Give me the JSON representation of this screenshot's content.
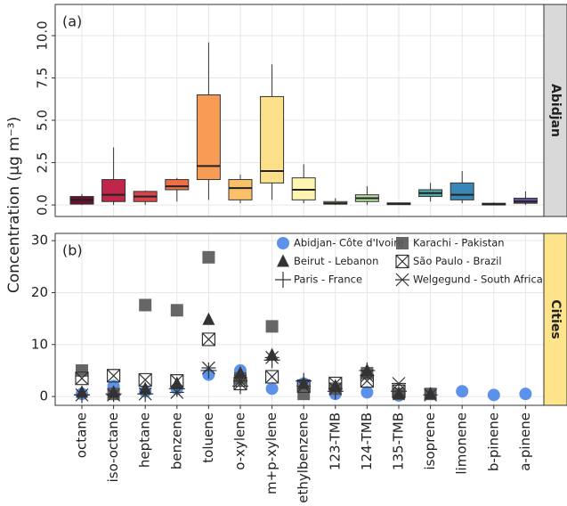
{
  "chart_data": [
    {
      "type": "box",
      "panel_label": "(a)",
      "strip": "Abidjan",
      "strip_color": "#d9d9d9",
      "ylabel": "Concentration (μg m⁻³)",
      "ylim": [
        -0.68,
        11.84
      ],
      "yticks": [
        {
          "value": 0,
          "label": "0.0"
        },
        2.5,
        {
          "value": 5,
          "label": "5.0"
        },
        7.5,
        {
          "value": 10,
          "label": "10.0"
        }
      ],
      "grid": true,
      "stats": [
        {
          "whisker_low": 0,
          "q1": 0.05,
          "median": 0.3,
          "q3": 0.5,
          "whisker_high": 0.65,
          "color": "#6b0f2a"
        },
        {
          "whisker_low": 0,
          "q1": 0.2,
          "median": 0.6,
          "q3": 1.5,
          "whisker_high": 3.4,
          "color": "#c0264a"
        },
        {
          "whisker_low": 0,
          "q1": 0.2,
          "median": 0.5,
          "q3": 0.8,
          "whisker_high": 0.85,
          "color": "#d9444a"
        },
        {
          "whisker_low": 0.2,
          "q1": 0.9,
          "median": 1.1,
          "q3": 1.5,
          "whisker_high": 1.6,
          "color": "#ef6e45"
        },
        {
          "whisker_low": 0.3,
          "q1": 1.5,
          "median": 2.3,
          "q3": 6.5,
          "whisker_high": 9.6,
          "color": "#f89b55"
        },
        {
          "whisker_low": 0.1,
          "q1": 0.3,
          "median": 1.0,
          "q3": 1.5,
          "whisker_high": 1.8,
          "color": "#fdc06a"
        },
        {
          "whisker_low": 0.3,
          "q1": 1.3,
          "median": 2.0,
          "q3": 6.4,
          "whisker_high": 8.3,
          "color": "#fde08a"
        },
        {
          "whisker_low": 0.1,
          "q1": 0.3,
          "median": 0.9,
          "q3": 1.6,
          "whisker_high": 2.4,
          "color": "#fff5b0"
        },
        {
          "whisker_low": 0,
          "q1": 0.05,
          "median": 0.1,
          "q3": 0.2,
          "whisker_high": 0.4,
          "color": "#e6f2a0"
        },
        {
          "whisker_low": 0,
          "q1": 0.2,
          "median": 0.4,
          "q3": 0.6,
          "whisker_high": 1.1,
          "color": "#b2dc9c"
        },
        {
          "whisker_low": 0,
          "q1": 0.02,
          "median": 0.08,
          "q3": 0.12,
          "whisker_high": 0.15,
          "color": "#7cc6a4"
        },
        {
          "whisker_low": 0.2,
          "q1": 0.5,
          "median": 0.7,
          "q3": 0.9,
          "whisker_high": 1.3,
          "color": "#4fa8a8"
        },
        {
          "whisker_low": 0.1,
          "q1": 0.3,
          "median": 0.6,
          "q3": 1.3,
          "whisker_high": 2.0,
          "color": "#3a86b4"
        },
        {
          "whisker_low": 0,
          "q1": 0,
          "median": 0.05,
          "q3": 0.1,
          "whisker_high": 0.15,
          "color": "#4a61a8"
        },
        {
          "whisker_low": 0,
          "q1": 0.1,
          "median": 0.2,
          "q3": 0.4,
          "whisker_high": 0.8,
          "color": "#6a4d9c"
        }
      ]
    },
    {
      "type": "scatter",
      "panel_label": "(b)",
      "strip": "Cities",
      "strip_color": "#fde38a",
      "ylim": [
        -1.7,
        31.4
      ],
      "yticks": [
        0,
        10,
        20,
        30
      ],
      "grid": true,
      "categories": [
        "octane",
        "iso-octane",
        "heptane",
        "benzene",
        "toluene",
        "o-xylene",
        "m+p-xylene",
        "ethylbenzene",
        "123-TMB",
        "124-TMB",
        "135-TMB",
        "isoprene",
        "limonene",
        "b-pinene",
        "a-pinene"
      ],
      "series": [
        {
          "name": "Abidjan- Côte d'Ivoire",
          "marker": "circle",
          "color": "#4a86e8",
          "values": [
            0.5,
            2,
            1,
            1.5,
            4.2,
            5,
            1.5,
            2.5,
            0.5,
            0.8,
            0.2,
            0.5,
            1,
            0.3,
            0.5
          ]
        },
        {
          "name": "Karachi - Pakistan",
          "marker": "square",
          "color": "#555555",
          "values": [
            5,
            0.5,
            17.6,
            16.6,
            26.8,
            3.5,
            13.5,
            0.5,
            1.5,
            4.5,
            0.5,
            0.5,
            null,
            null,
            null
          ]
        },
        {
          "name": "Beirut - Lebanon",
          "marker": "triangle",
          "color": "#333333",
          "values": [
            0.8,
            0.8,
            1.5,
            2.5,
            14.8,
            4.5,
            8,
            2.5,
            2,
            5,
            0.5,
            0.5,
            null,
            null,
            null
          ]
        },
        {
          "name": "São Paulo - Brazil",
          "marker": "boxx",
          "color": "#333333",
          "values": [
            3.5,
            4,
            3.2,
            3,
            11,
            2.5,
            3.8,
            2,
            2.5,
            3,
            1,
            null,
            null,
            null,
            null
          ]
        },
        {
          "name": "Paris - France",
          "marker": "plus",
          "color": "#333333",
          "values": [
            0.3,
            0.5,
            0.5,
            1.5,
            5,
            2,
            7,
            3,
            1,
            5,
            1,
            null,
            null,
            null,
            null
          ]
        },
        {
          "name": "Welgegund - South Africa",
          "marker": "asterisk",
          "color": "#333333",
          "values": [
            0.3,
            0.3,
            0.5,
            0.8,
            5.5,
            3,
            7.5,
            2,
            1.5,
            4,
            2.5,
            0.3,
            null,
            null,
            null
          ]
        }
      ]
    }
  ]
}
